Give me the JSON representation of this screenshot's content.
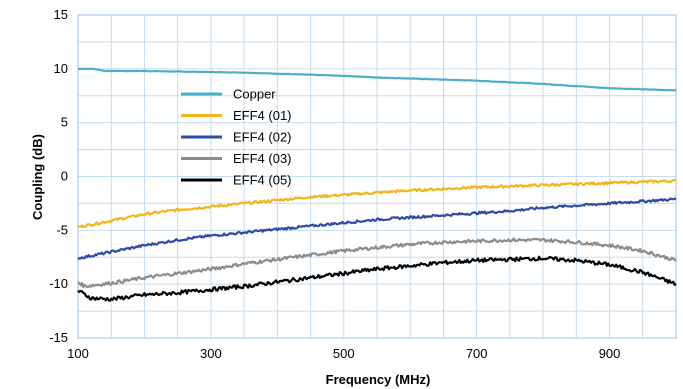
{
  "chart_data": {
    "type": "line",
    "title": "",
    "xlabel": "Frequency (MHz)",
    "ylabel": "Coupling (dB)",
    "xlim": [
      100,
      1000
    ],
    "ylim": [
      -15,
      15
    ],
    "x_ticks": [
      100,
      300,
      500,
      700,
      900
    ],
    "y_ticks": [
      15,
      10,
      5,
      0,
      -5,
      -10,
      -15
    ],
    "x_tick_labels": [
      "100",
      "300",
      "500",
      "700",
      "900"
    ],
    "y_tick_labels": [
      "15",
      "10",
      "5",
      "0",
      "-5",
      "-10",
      "-15"
    ],
    "grid": true,
    "legend_position": "upper-left-inside",
    "series": [
      {
        "name": "Copper",
        "color": "#4BAFC8",
        "x": [
          100,
          125,
          140,
          200,
          250,
          300,
          350,
          400,
          450,
          500,
          550,
          600,
          650,
          700,
          750,
          800,
          850,
          900,
          950,
          1000
        ],
        "y": [
          10.0,
          10.0,
          9.8,
          9.8,
          9.75,
          9.7,
          9.65,
          9.55,
          9.45,
          9.35,
          9.2,
          9.1,
          9.0,
          8.9,
          8.75,
          8.6,
          8.4,
          8.2,
          8.1,
          8.0
        ]
      },
      {
        "name": "EFF4 (01)",
        "color": "#F2B51C",
        "x": [
          100,
          150,
          200,
          250,
          300,
          350,
          400,
          450,
          500,
          550,
          600,
          650,
          700,
          750,
          800,
          850,
          900,
          950,
          1000
        ],
        "y": [
          -4.7,
          -4.1,
          -3.5,
          -3.1,
          -2.8,
          -2.5,
          -2.2,
          -1.9,
          -1.7,
          -1.5,
          -1.3,
          -1.15,
          -1.0,
          -0.9,
          -0.8,
          -0.7,
          -0.6,
          -0.5,
          -0.4
        ]
      },
      {
        "name": "EFF4 (02)",
        "color": "#2E4BA6",
        "x": [
          100,
          150,
          200,
          250,
          300,
          350,
          400,
          450,
          500,
          550,
          600,
          650,
          700,
          750,
          800,
          850,
          900,
          950,
          1000
        ],
        "y": [
          -7.6,
          -7.0,
          -6.4,
          -5.9,
          -5.5,
          -5.2,
          -4.9,
          -4.6,
          -4.3,
          -4.0,
          -3.8,
          -3.6,
          -3.4,
          -3.2,
          -2.9,
          -2.7,
          -2.5,
          -2.3,
          -2.1
        ]
      },
      {
        "name": "EFF4 (03)",
        "color": "#8C8C8C",
        "x": [
          100,
          110,
          150,
          200,
          250,
          300,
          350,
          400,
          450,
          500,
          550,
          600,
          650,
          700,
          750,
          800,
          850,
          900,
          950,
          1000
        ],
        "y": [
          -9.8,
          -10.2,
          -9.9,
          -9.4,
          -9.0,
          -8.6,
          -8.1,
          -7.7,
          -7.3,
          -6.9,
          -6.6,
          -6.3,
          -6.1,
          -6.0,
          -5.9,
          -5.9,
          -6.1,
          -6.4,
          -6.9,
          -7.8
        ]
      },
      {
        "name": "EFF4 (05)",
        "color": "#000000",
        "x": [
          100,
          120,
          150,
          200,
          250,
          300,
          350,
          400,
          450,
          500,
          550,
          600,
          650,
          700,
          750,
          800,
          850,
          900,
          950,
          1000
        ],
        "y": [
          -10.6,
          -11.3,
          -11.4,
          -11.0,
          -10.8,
          -10.5,
          -10.2,
          -9.8,
          -9.4,
          -9.0,
          -8.6,
          -8.3,
          -8.0,
          -7.8,
          -7.7,
          -7.6,
          -7.8,
          -8.2,
          -8.9,
          -10.0
        ]
      }
    ]
  }
}
